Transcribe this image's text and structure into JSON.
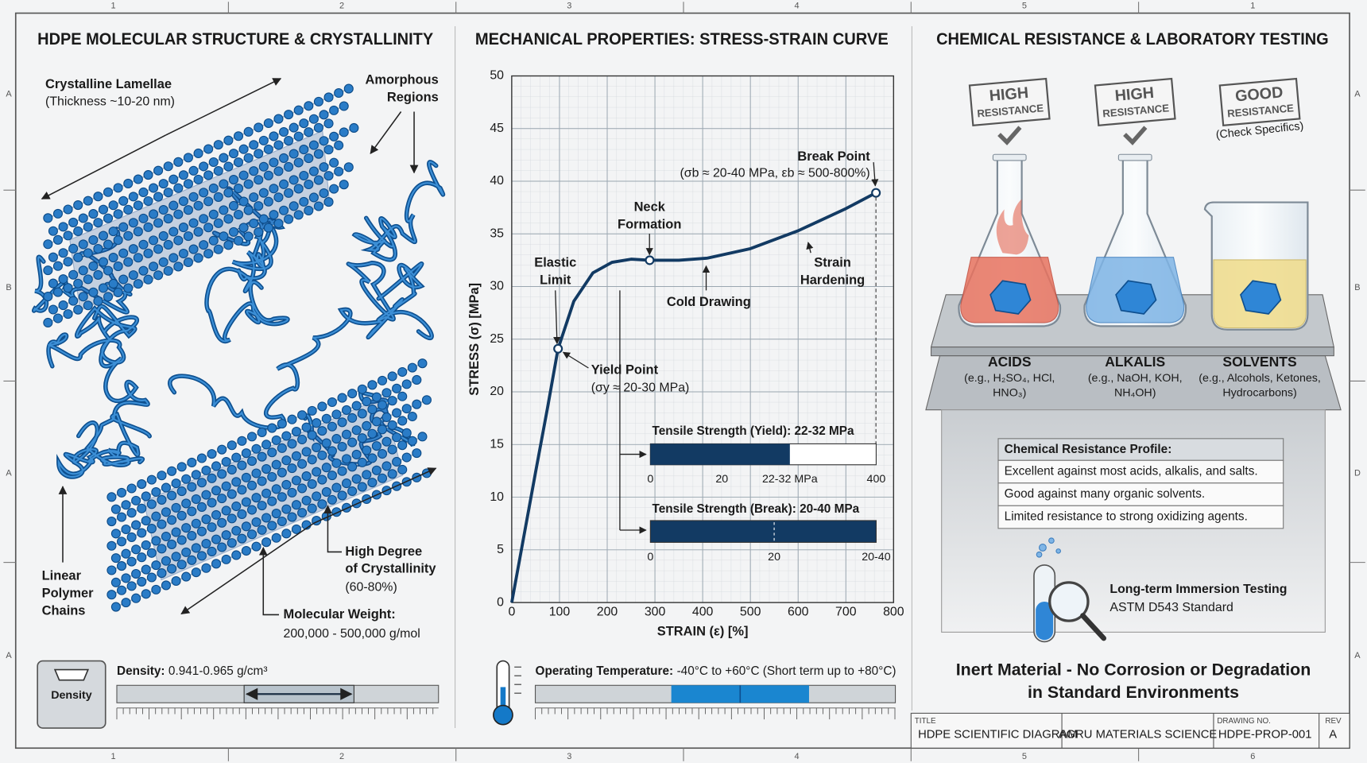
{
  "frame": {
    "top": [
      "1",
      "2",
      "3",
      "4",
      "5",
      "1"
    ],
    "bottom": [
      "1",
      "2",
      "3",
      "4",
      "5",
      "6"
    ],
    "left": [
      "A",
      "B",
      "A",
      "A"
    ],
    "right": [
      "A",
      "B",
      "D",
      "A"
    ]
  },
  "structure": {
    "title": "HDPE MOLECULAR STRUCTURE & CRYSTALLINITY",
    "lamellae": [
      "Crystalline Lamellae",
      "(Thickness ~10-20 nm)"
    ],
    "amorphous": [
      "Amorphous",
      "Regions"
    ],
    "linear": [
      "Linear",
      "Polymer",
      "Chains"
    ],
    "crystallinity": [
      "High Degree",
      "of Crystallinity",
      "(60-80%)"
    ],
    "molecular_weight": [
      "Molecular Weight:",
      "200,000 - 500,000 g/mol"
    ],
    "density_icon": "Density",
    "density_label": "Density:",
    "density_value": "0.941-0.965 g/cm³"
  },
  "chart_data": {
    "type": "line",
    "title": "MECHANICAL PROPERTIES: STRESS-STRAIN CURVE",
    "xlabel": "STRAIN (ε) [%]",
    "ylabel": "STRESS (σ) [MPa]",
    "x": [
      0,
      25,
      50,
      75,
      97,
      130,
      170,
      210,
      250,
      289,
      350,
      410,
      500,
      600,
      700,
      763
    ],
    "values": [
      0,
      6.2,
      12.4,
      18.5,
      24.1,
      28.6,
      31.3,
      32.3,
      32.6,
      32.5,
      32.5,
      32.7,
      33.6,
      35.3,
      37.4,
      38.9
    ],
    "color": "#123a63",
    "xlim": [
      0,
      800
    ],
    "xticks": [
      0,
      100,
      200,
      300,
      400,
      500,
      600,
      700,
      800
    ],
    "ylim": [
      0,
      50
    ],
    "yticks": [
      0,
      5,
      10,
      15,
      20,
      25,
      30,
      35,
      40,
      45,
      50
    ],
    "grid": true,
    "annotations": {
      "elastic_limit": [
        "Elastic",
        "Limit"
      ],
      "neck": [
        "Neck",
        "Formation"
      ],
      "cold_drawing": "Cold Drawing",
      "strain_hardening": [
        "Strain",
        "Hardening"
      ],
      "break_point": [
        "Break Point",
        "(σb ≈ 20-40 MPa, εb ≈ 500-800%)"
      ],
      "yield_point": [
        "Yield Point",
        "(σy ≈ 20-30 MPa)"
      ]
    }
  },
  "mechanical": {
    "yield_bar": {
      "label": "Tensile Strength (Yield): 22-32 MPa",
      "ticks": [
        "0",
        "20",
        "22-32 MPa",
        "400"
      ]
    },
    "break_bar": {
      "label": "Tensile Strength (Break): 20-40 MPa",
      "ticks": [
        "0",
        "20",
        "20-40"
      ]
    },
    "temperature_label": "Operating Temperature:",
    "temperature_value": "-40°C to +60°C (Short term up to +80°C)"
  },
  "chemical": {
    "title": "CHEMICAL RESISTANCE & LABORATORY TESTING",
    "stamps": [
      [
        "HIGH",
        "RESISTANCE"
      ],
      [
        "HIGH",
        "RESISTANCE"
      ],
      [
        "GOOD",
        "RESISTANCE"
      ]
    ],
    "stamp_note": "(Check Specifics)",
    "classes": [
      {
        "name": "ACIDS",
        "examples": [
          "(e.g., H₂SO₄, HCl,",
          "HNO₃)"
        ]
      },
      {
        "name": "ALKALIS",
        "examples": [
          "(e.g., NaOH, KOH,",
          "NH₄OH)"
        ]
      },
      {
        "name": "SOLVENTS",
        "examples": [
          "(e.g., Alcohols, Ketones,",
          "Hydrocarbons)"
        ]
      }
    ],
    "table": {
      "header": "Chemical Resistance Profile:",
      "rows": [
        "Excellent against most acids, alkalis, and salts.",
        "Good against many organic solvents.",
        "Limited resistance to strong oxidizing agents."
      ]
    },
    "testing": [
      "Long-term Immersion Testing",
      "ASTM D543 Standard"
    ],
    "conclusion": [
      "Inert Material - No Corrosion or Degradation",
      "in Standard Environments"
    ]
  },
  "title_block": {
    "title_caption": "TITLE",
    "title": "HDPE SCIENTIFIC DIAGRAM",
    "organization": "AGRU MATERIALS SCIENCE",
    "drawing_caption": "DRAWING NO.",
    "drawing_no": "HDPE-PROP-001",
    "rev_caption": "REV",
    "rev": "A"
  }
}
